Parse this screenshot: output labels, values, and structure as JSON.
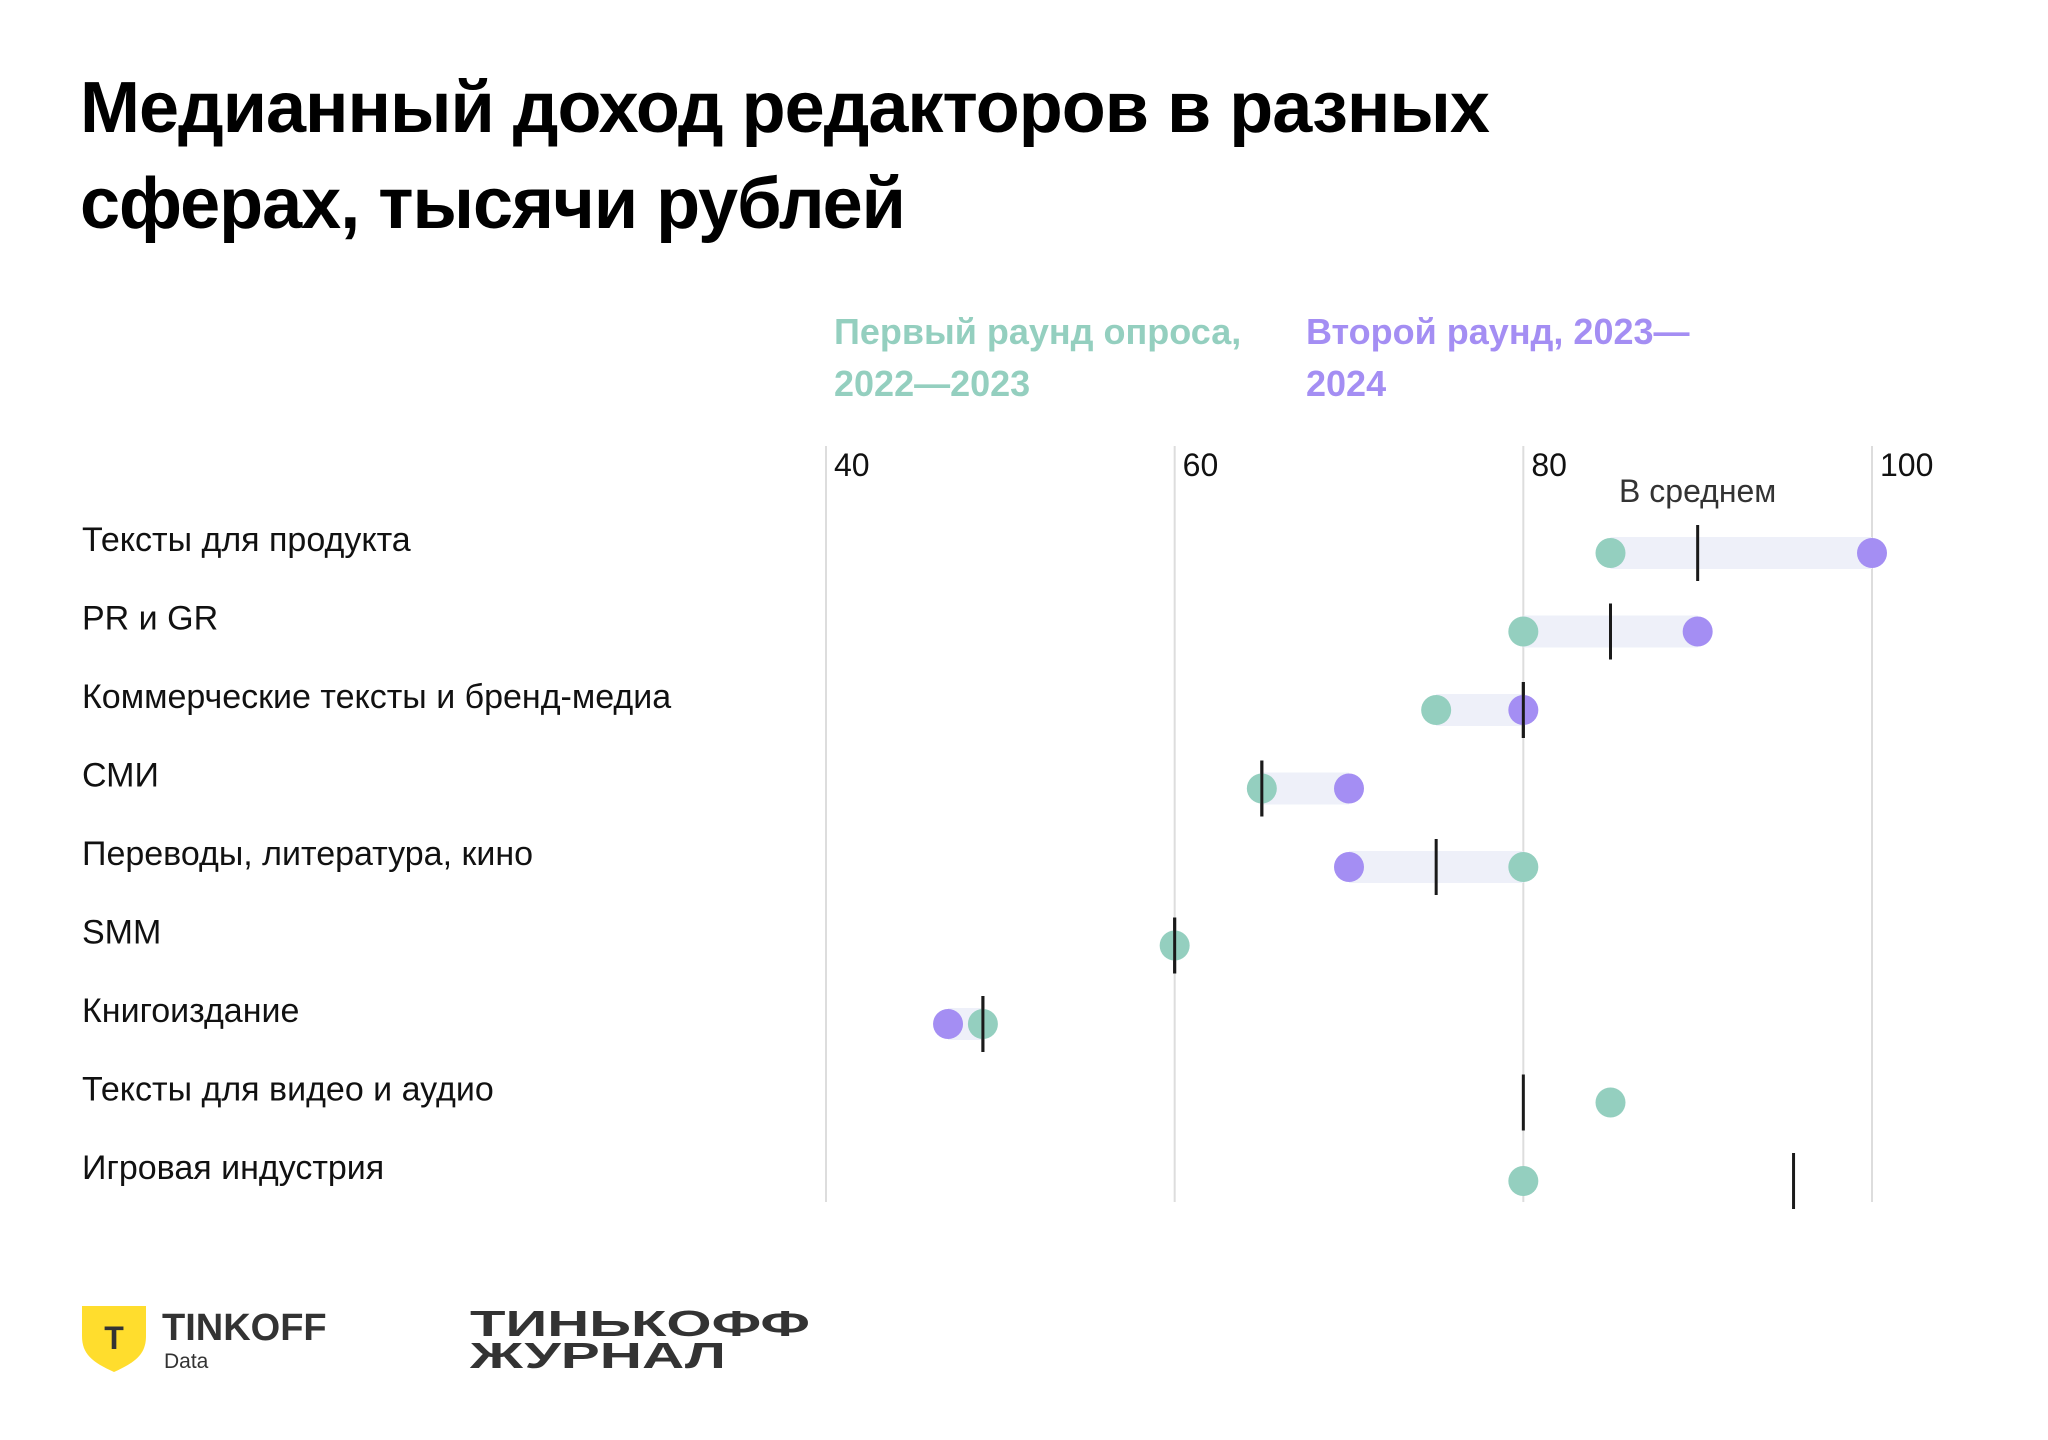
{
  "title": "Медианный доход редакторов в разных сферах, тысячи рублей",
  "legend": {
    "first": "Первый раунд опроса, 2022—2023",
    "second": "Второй раунд, 2023—2024"
  },
  "colors": {
    "first": "#94cfbf",
    "second": "#a48ef3",
    "band": "#eef0f9",
    "average": "#1a1a1a",
    "grid": "#dddddd"
  },
  "average_label": "В среднем",
  "chart_data": {
    "type": "dumbbell",
    "title": "Медианный доход редакторов в разных сферах, тысячи рублей",
    "xlim": [
      40,
      100
    ],
    "xticks": [
      40,
      60,
      80,
      100
    ],
    "grid": true,
    "legend_placement": "top",
    "series": [
      {
        "name": "Первый раунд опроса, 2022—2023",
        "key": "first"
      },
      {
        "name": "Второй раунд, 2023—2024",
        "key": "second"
      },
      {
        "name": "В среднем",
        "key": "average"
      }
    ],
    "categories": [
      {
        "label": "Тексты для продукта",
        "first": 85,
        "second": 100,
        "average": 90
      },
      {
        "label": "PR и GR",
        "first": 80,
        "second": 90,
        "average": 85
      },
      {
        "label": "Коммерческие тексты и бренд-медиа",
        "first": 75,
        "second": 80,
        "average": 80
      },
      {
        "label": "СМИ",
        "first": 65,
        "second": 70,
        "average": 65
      },
      {
        "label": "Переводы, литература, кино",
        "first": 80,
        "second": 70,
        "average": 75
      },
      {
        "label": "SMM",
        "first": 60,
        "second": null,
        "average": 60
      },
      {
        "label": "Книгоиздание",
        "first": 49,
        "second": 47,
        "average": 49
      },
      {
        "label": "Тексты для видео и аудио",
        "first": 85,
        "second": null,
        "average": 80
      },
      {
        "label": "Игровая индустрия",
        "first": 80,
        "second": null,
        "average": 95.5
      }
    ]
  },
  "footer": {
    "tinkoff_data": {
      "badge": "Т",
      "name": "TINKOFF",
      "sub": "Data"
    },
    "journal": {
      "line1": "ТИНЬКОФФ",
      "line2": "ЖУРНАЛ"
    }
  }
}
